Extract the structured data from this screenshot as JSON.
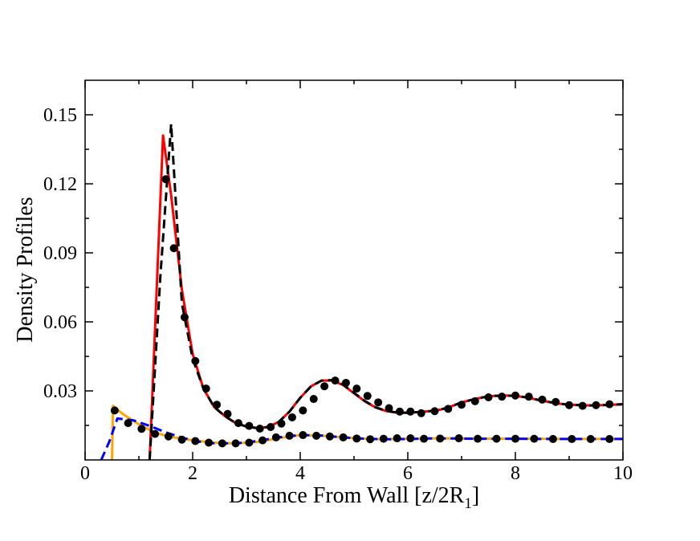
{
  "chart_data": {
    "type": "line",
    "title": "",
    "xlabel": "Distance From Wall [z/2R",
    "xlabel_subscript": "1",
    "xlabel_suffix": "]",
    "ylabel": "Density Profiles",
    "xlim": [
      0,
      10
    ],
    "ylim": [
      0,
      0.165
    ],
    "xticks": [
      0,
      2,
      4,
      6,
      8,
      10
    ],
    "xtick_labels": [
      "0",
      "2",
      "4",
      "6",
      "8",
      "10"
    ],
    "yticks": [
      0.03,
      0.06,
      0.09,
      0.12,
      0.15
    ],
    "ytick_labels": [
      "0.03",
      "0.06",
      "0.09",
      "0.12",
      "0.15"
    ],
    "grid": false,
    "legend": "none",
    "series": [
      {
        "name": "large-species-theory-solid",
        "style": "solid",
        "color": "#ff0000",
        "x": [
          1.2,
          1.45,
          1.6,
          1.8,
          2.0,
          2.2,
          2.4,
          2.6,
          2.8,
          3.0,
          3.2,
          3.4,
          3.6,
          3.8,
          4.0,
          4.2,
          4.4,
          4.6,
          4.8,
          5.0,
          5.2,
          5.4,
          5.6,
          5.8,
          6.0,
          6.2,
          6.4,
          6.6,
          6.8,
          7.0,
          7.2,
          7.4,
          7.6,
          7.8,
          8.0,
          8.2,
          8.4,
          8.6,
          8.8,
          9.0,
          9.2,
          9.4,
          9.6,
          9.8,
          10.0
        ],
        "y": [
          0.0,
          0.141,
          0.115,
          0.074,
          0.046,
          0.031,
          0.023,
          0.019,
          0.016,
          0.0145,
          0.0138,
          0.0143,
          0.0165,
          0.021,
          0.027,
          0.032,
          0.0345,
          0.0345,
          0.0325,
          0.029,
          0.0255,
          0.0228,
          0.0212,
          0.0205,
          0.0205,
          0.0208,
          0.0212,
          0.0218,
          0.0232,
          0.025,
          0.0262,
          0.0272,
          0.0278,
          0.028,
          0.0278,
          0.0272,
          0.0262,
          0.0253,
          0.0245,
          0.024,
          0.0238,
          0.0237,
          0.0238,
          0.024,
          0.0242
        ]
      },
      {
        "name": "large-species-theory-dashed",
        "style": "dashed",
        "color": "#000000",
        "x": [
          1.2,
          1.4,
          1.6,
          1.8,
          2.0,
          2.2,
          2.4,
          2.6,
          2.8,
          3.0,
          3.2,
          3.4,
          3.6,
          3.8,
          4.0,
          4.2,
          4.4,
          4.6,
          4.8,
          5.0,
          5.2,
          5.4,
          5.6,
          5.8,
          6.0,
          6.2,
          6.4,
          6.6,
          6.8,
          7.0,
          7.2,
          7.4,
          7.6,
          7.8,
          8.0,
          8.2,
          8.4,
          8.6,
          8.8,
          9.0,
          9.2,
          9.4,
          9.6,
          9.8,
          10.0
        ],
        "y": [
          0.0,
          0.08,
          0.146,
          0.068,
          0.044,
          0.031,
          0.023,
          0.019,
          0.016,
          0.0145,
          0.0138,
          0.0143,
          0.0165,
          0.021,
          0.027,
          0.032,
          0.0345,
          0.0347,
          0.0327,
          0.0292,
          0.0256,
          0.0229,
          0.0213,
          0.0206,
          0.0205,
          0.0208,
          0.0212,
          0.0218,
          0.0232,
          0.025,
          0.0262,
          0.0272,
          0.0278,
          0.028,
          0.0278,
          0.0272,
          0.0262,
          0.0253,
          0.0245,
          0.024,
          0.0238,
          0.0237,
          0.0238,
          0.024,
          0.0242
        ]
      },
      {
        "name": "large-species-simulation",
        "style": "markers",
        "color": "#000000",
        "x": [
          1.5,
          1.65,
          1.85,
          2.05,
          2.25,
          2.45,
          2.65,
          2.85,
          3.05,
          3.25,
          3.45,
          3.65,
          3.85,
          4.05,
          4.25,
          4.45,
          4.65,
          4.85,
          5.05,
          5.25,
          5.45,
          5.65,
          5.85,
          6.05,
          6.25,
          6.5,
          6.75,
          7.0,
          7.25,
          7.5,
          7.75,
          8.0,
          8.25,
          8.5,
          8.75,
          9.0,
          9.25,
          9.5,
          9.75
        ],
        "y": [
          0.122,
          0.092,
          0.062,
          0.043,
          0.031,
          0.024,
          0.02,
          0.016,
          0.0148,
          0.0136,
          0.0143,
          0.0158,
          0.0185,
          0.0215,
          0.0265,
          0.032,
          0.0345,
          0.0335,
          0.031,
          0.0278,
          0.025,
          0.0225,
          0.021,
          0.021,
          0.0203,
          0.0212,
          0.0222,
          0.024,
          0.0255,
          0.0272,
          0.0275,
          0.028,
          0.0275,
          0.0262,
          0.0252,
          0.0238,
          0.0235,
          0.0238,
          0.0242
        ]
      },
      {
        "name": "small-species-theory-orange",
        "style": "solid",
        "color": "#ffa500",
        "x": [
          0.5,
          0.52,
          0.7,
          1.0,
          1.3,
          1.6,
          2.0,
          2.4,
          2.8,
          3.2,
          3.6,
          4.0,
          4.4,
          4.8,
          5.2,
          5.6,
          6.0,
          6.4,
          6.8,
          7.2,
          7.6,
          8.0,
          8.4,
          8.8,
          9.2,
          9.6,
          10.0
        ],
        "y": [
          0.0,
          0.0235,
          0.02,
          0.0155,
          0.0118,
          0.01,
          0.0085,
          0.0075,
          0.0072,
          0.0078,
          0.0095,
          0.0108,
          0.0105,
          0.0098,
          0.0092,
          0.009,
          0.0092,
          0.0094,
          0.0094,
          0.0093,
          0.0092,
          0.0092,
          0.0092,
          0.0091,
          0.0091,
          0.0091,
          0.0091
        ]
      },
      {
        "name": "small-species-theory-blue",
        "style": "dashed",
        "color": "#0000ff",
        "x": [
          0.3,
          0.45,
          0.6,
          0.9,
          1.2,
          1.5,
          1.8,
          2.1,
          2.4,
          2.8,
          3.2,
          3.6,
          4.0,
          4.4,
          4.8,
          5.2,
          5.6,
          6.0,
          6.4,
          6.8,
          7.2,
          7.6,
          8.0,
          8.4,
          8.8,
          9.2,
          9.6,
          10.0
        ],
        "y": [
          0.0,
          0.008,
          0.018,
          0.0172,
          0.0148,
          0.012,
          0.0097,
          0.008,
          0.0072,
          0.0072,
          0.0082,
          0.0098,
          0.0108,
          0.0106,
          0.0098,
          0.0092,
          0.009,
          0.0091,
          0.0093,
          0.0093,
          0.0092,
          0.0092,
          0.0092,
          0.0091,
          0.0091,
          0.0091,
          0.0091,
          0.0091
        ]
      },
      {
        "name": "small-species-simulation",
        "style": "markers",
        "color": "#000000",
        "x": [
          0.55,
          0.8,
          1.05,
          1.3,
          1.55,
          1.8,
          2.05,
          2.3,
          2.55,
          2.8,
          3.05,
          3.3,
          3.55,
          3.8,
          4.05,
          4.3,
          4.55,
          4.8,
          5.05,
          5.3,
          5.55,
          5.8,
          6.05,
          6.3,
          6.6,
          6.95,
          7.3,
          7.65,
          8.0,
          8.35,
          8.7,
          9.05,
          9.4,
          9.75
        ],
        "y": [
          0.0215,
          0.016,
          0.0135,
          0.0113,
          0.0102,
          0.0088,
          0.0082,
          0.0075,
          0.0072,
          0.0072,
          0.0075,
          0.0085,
          0.0098,
          0.0105,
          0.0108,
          0.0105,
          0.0102,
          0.0098,
          0.0093,
          0.009,
          0.0092,
          0.0094,
          0.0094,
          0.0092,
          0.0093,
          0.0094,
          0.0092,
          0.0092,
          0.0092,
          0.0092,
          0.0091,
          0.0091,
          0.0091,
          0.0091
        ]
      }
    ]
  }
}
